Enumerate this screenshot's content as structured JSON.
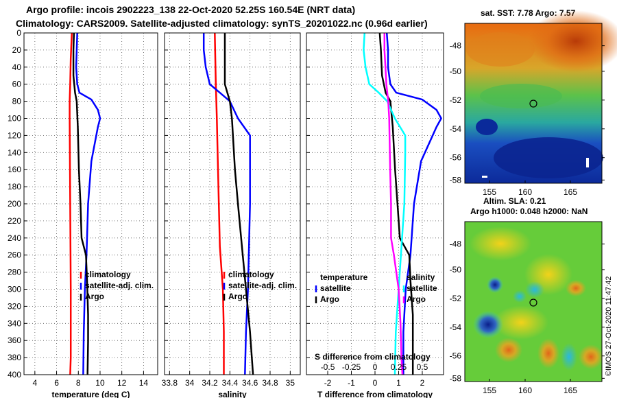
{
  "header": {
    "line1": "Argo profile: incois 2902223_138 22-Oct-2020 52.25S 160.54E (NRT data)",
    "line2": "Climatology: CARS2009. Satellite-adjusted climatology: synTS_20201022.nc (0.96d earlier)"
  },
  "maps": {
    "sst_title": "sat. SST: 7.78 Argo: 7.57",
    "sla_title1": "Altim. SLA: 0.21",
    "sla_title2": "Argo h1000: 0.048 h2000: NaN",
    "lat_ticks": [
      "-48",
      "-50",
      "-52",
      "-54",
      "-56",
      "-58"
    ],
    "lon_ticks": [
      "155",
      "160",
      "165"
    ],
    "credit": "©IMOS 27-Oct-2020 11:47:42"
  },
  "colors": {
    "climatology": "#ff0000",
    "satellite": "#0000ff",
    "argo": "#000000",
    "temp_diff": "#00ffff",
    "sal_diff": "#ff00ff"
  },
  "chart_data": [
    {
      "type": "line",
      "panel": "temperature",
      "xlabel": "temperature (deg C)",
      "ylabel": "depth",
      "xlim": [
        3,
        15.3
      ],
      "ylim": [
        400,
        0
      ],
      "x_ticks": [
        4,
        6,
        8,
        10,
        12,
        14
      ],
      "x_tick_labels": [
        "4",
        "6",
        "8",
        "10",
        "12",
        "14"
      ],
      "y_ticks": [
        0,
        20,
        40,
        60,
        80,
        100,
        120,
        140,
        160,
        180,
        200,
        220,
        240,
        260,
        280,
        300,
        320,
        340,
        360,
        380,
        400
      ],
      "y_tick_labels": [
        "0",
        "20",
        "40",
        "60",
        "80",
        "100",
        "120",
        "140",
        "160",
        "180",
        "200",
        "220",
        "240",
        "260",
        "280",
        "300",
        "320",
        "340",
        "360",
        "380",
        "400"
      ],
      "grid": true,
      "legend": {
        "position": "bottom-right",
        "entries": [
          "climatology",
          "satellite-adj. clim.",
          "Argo"
        ]
      },
      "series": [
        {
          "name": "climatology",
          "color": "#ff0000",
          "depth": [
            0,
            30,
            60,
            80,
            100,
            200,
            300,
            380,
            400
          ],
          "values": [
            7.4,
            7.3,
            7.25,
            7.2,
            7.2,
            7.25,
            7.3,
            7.3,
            7.25
          ]
        },
        {
          "name": "satellite-adj. clim.",
          "color": "#0000ff",
          "depth": [
            0,
            20,
            40,
            60,
            70,
            78,
            90,
            100,
            110,
            150,
            200,
            260,
            300,
            350,
            400
          ],
          "values": [
            7.9,
            7.85,
            7.8,
            7.9,
            8.1,
            9.2,
            9.8,
            10.0,
            9.8,
            9.2,
            8.9,
            8.75,
            8.6,
            8.5,
            8.45
          ]
        },
        {
          "name": "Argo",
          "color": "#000000",
          "depth": [
            0,
            20,
            50,
            70,
            80,
            110,
            160,
            200,
            240,
            260,
            290,
            330,
            360,
            400
          ],
          "values": [
            7.6,
            7.55,
            7.55,
            7.7,
            7.85,
            7.95,
            8.05,
            8.2,
            8.3,
            8.7,
            8.8,
            8.9,
            8.9,
            8.85
          ]
        }
      ]
    },
    {
      "type": "line",
      "panel": "salinity",
      "xlabel": "salinity",
      "ylabel": "depth",
      "xlim": [
        33.75,
        35.1
      ],
      "ylim": [
        400,
        0
      ],
      "x_ticks": [
        33.8,
        34,
        34.2,
        34.4,
        34.6,
        34.8,
        35
      ],
      "x_tick_labels": [
        "33.8",
        "34",
        "34.2",
        "34.4",
        "34.6",
        "34.8",
        "35"
      ],
      "y_ticks": [
        0,
        20,
        40,
        60,
        80,
        100,
        120,
        140,
        160,
        180,
        200,
        220,
        240,
        260,
        280,
        300,
        320,
        340,
        360,
        380,
        400
      ],
      "grid": true,
      "legend": {
        "position": "bottom-right",
        "entries": [
          "climatology",
          "satellite-adj. clim.",
          "Argo"
        ]
      },
      "series": [
        {
          "name": "climatology",
          "color": "#ff0000",
          "depth": [
            0,
            60,
            100,
            150,
            200,
            250,
            300,
            350,
            400
          ],
          "values": [
            34.25,
            34.26,
            34.27,
            34.28,
            34.29,
            34.3,
            34.33,
            34.34,
            34.34
          ]
        },
        {
          "name": "satellite-adj. clim.",
          "color": "#0000ff",
          "depth": [
            0,
            20,
            40,
            60,
            70,
            80,
            100,
            120,
            140,
            200,
            300,
            350,
            400
          ],
          "values": [
            34.14,
            34.14,
            34.16,
            34.2,
            34.3,
            34.4,
            34.48,
            34.6,
            34.6,
            34.6,
            34.58,
            34.56,
            34.55
          ]
        },
        {
          "name": "Argo",
          "color": "#000000",
          "depth": [
            0,
            60,
            80,
            100,
            160,
            200,
            250,
            300,
            350,
            400
          ],
          "values": [
            34.35,
            34.35,
            34.4,
            34.42,
            34.45,
            34.48,
            34.52,
            34.56,
            34.6,
            34.63
          ]
        }
      ]
    },
    {
      "type": "line",
      "panel": "difference",
      "xlabel": "T difference from climatology",
      "top_label": "S difference from climatology",
      "ylabel": "depth",
      "xlim": [
        -2.9,
        2.9
      ],
      "ylim": [
        400,
        0
      ],
      "x_ticks": [
        -2,
        -1,
        0,
        1,
        2
      ],
      "x_tick_labels": [
        "-2",
        "-1",
        "0",
        "1",
        "2"
      ],
      "s_xlim": [
        -0.725,
        0.725
      ],
      "s_ticks": [
        -0.5,
        -0.25,
        0,
        0.25,
        0.5
      ],
      "s_tick_labels": [
        "-0.5",
        "-0.25",
        "0",
        "0.25",
        "0.5"
      ],
      "y_ticks": [
        0,
        20,
        40,
        60,
        80,
        100,
        120,
        140,
        160,
        180,
        200,
        220,
        240,
        260,
        280,
        300,
        320,
        340,
        360,
        380,
        400
      ],
      "grid": true,
      "legend": {
        "position": "bottom",
        "columns": [
          "temperature",
          "salinity"
        ],
        "entries": [
          "satellite",
          "Argo"
        ]
      },
      "series": [
        {
          "name": "temperature satellite",
          "color": "#0000ff",
          "depth": [
            0,
            20,
            40,
            60,
            70,
            78,
            90,
            100,
            110,
            150,
            200,
            260,
            300,
            350,
            400
          ],
          "values": [
            0.5,
            0.55,
            0.55,
            0.65,
            0.9,
            2.0,
            2.6,
            2.8,
            2.6,
            1.95,
            1.65,
            1.5,
            1.3,
            1.2,
            1.2
          ]
        },
        {
          "name": "temperature Argo",
          "color": "#000000",
          "depth": [
            0,
            20,
            50,
            70,
            80,
            110,
            160,
            200,
            240,
            260,
            290,
            330,
            360,
            400
          ],
          "values": [
            0.2,
            0.25,
            0.3,
            0.45,
            0.65,
            0.75,
            0.85,
            0.95,
            1.05,
            1.45,
            1.5,
            1.6,
            1.6,
            1.6
          ]
        },
        {
          "name": "salinity satellite",
          "color": "#00ffff",
          "depth": [
            0,
            20,
            40,
            60,
            70,
            80,
            100,
            120,
            140,
            200,
            300,
            350,
            400
          ],
          "values": [
            -0.11,
            -0.12,
            -0.1,
            -0.06,
            0.04,
            0.13,
            0.21,
            0.32,
            0.32,
            0.31,
            0.25,
            0.22,
            0.21
          ]
        },
        {
          "name": "salinity Argo",
          "color": "#ff00ff",
          "depth": [
            0,
            20,
            40,
            60,
            80,
            100,
            160,
            200,
            240,
            260,
            300,
            340,
            380,
            400
          ],
          "values": [
            0.1,
            0.1,
            0.11,
            0.12,
            0.14,
            0.15,
            0.16,
            0.17,
            0.17,
            0.2,
            0.25,
            0.27,
            0.28,
            0.29
          ]
        }
      ]
    }
  ]
}
